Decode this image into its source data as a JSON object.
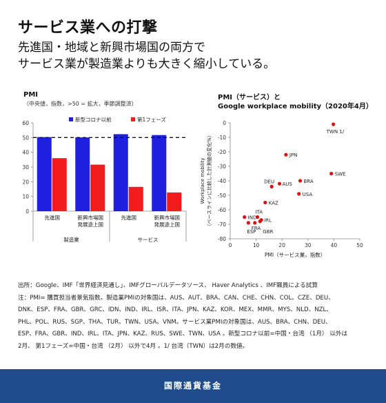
{
  "headline": "サービス業への打撃",
  "subtitle_line1": "先進国・地域と新興市場国の両方で",
  "subtitle_line2": "サービス業が製造業よりも大きく縮小している。",
  "left_chart": {
    "title": "PMI",
    "note": "（中央値，指数，>50 = 拡大，季節調整済）"
  },
  "right_chart": {
    "title_line1": "PMI（サービス）と",
    "title_line2": "Google workplace mobility（2020年4月）"
  },
  "chart_data": [
    {
      "type": "bar",
      "categories": [
        "先進国",
        "新興市場国発展途上国",
        "先進国",
        "新興市場国発展途上国"
      ],
      "category_lines": [
        [
          "先進国"
        ],
        [
          "新興市場国",
          "発展途上国"
        ],
        [
          "先進国"
        ],
        [
          "新興市場国",
          "発展途上国"
        ]
      ],
      "groups": [
        "製造業",
        "サービス"
      ],
      "series": [
        {
          "name": "新型コロナ以前",
          "color": "#1f1fe0",
          "values": [
            50.3,
            50.1,
            52.3,
            51.7
          ]
        },
        {
          "name": "第1フェーズ",
          "color": "#f21c1c",
          "values": [
            36.0,
            31.6,
            16.5,
            12.7
          ]
        }
      ],
      "reference_line": 50,
      "ylim": [
        0,
        60
      ],
      "yticks": [
        0,
        10,
        20,
        30,
        40,
        50,
        60
      ],
      "legend_position": "top"
    },
    {
      "type": "scatter",
      "xlabel": "PMI（サービス業，指数）",
      "ylabel_line1": "Workplace mobility",
      "ylabel_line2": "（ベースラインに比較した計測値の変化%）",
      "xlim": [
        0,
        50
      ],
      "ylim": [
        -80,
        0
      ],
      "xticks": [
        0,
        10,
        20,
        30,
        40,
        50
      ],
      "yticks": [
        0,
        -10,
        -20,
        -30,
        -40,
        -50,
        -60,
        -70,
        -80
      ],
      "color": "#e01010",
      "points": [
        {
          "label": "TWN 1/",
          "x": 39.8,
          "y": -1
        },
        {
          "label": "JPN",
          "x": 21.5,
          "y": -22
        },
        {
          "label": "SWE",
          "x": 39,
          "y": -35
        },
        {
          "label": "BRA",
          "x": 27,
          "y": -40
        },
        {
          "label": "DEU",
          "x": 16,
          "y": -44
        },
        {
          "label": "AUS",
          "x": 19,
          "y": -42
        },
        {
          "label": "USA",
          "x": 26.5,
          "y": -49
        },
        {
          "label": "KAZ",
          "x": 13.5,
          "y": -55
        },
        {
          "label": "IND",
          "x": 5.5,
          "y": -65
        },
        {
          "label": "ITA",
          "x": 10.5,
          "y": -65
        },
        {
          "label": "IRL",
          "x": 12,
          "y": -67
        },
        {
          "label": "ESP",
          "x": 7,
          "y": -69
        },
        {
          "label": "FRA",
          "x": 9.5,
          "y": -69
        },
        {
          "label": "GBR",
          "x": 11.5,
          "y": -68
        }
      ]
    }
  ],
  "notes": [
    "出所：Google、IMF「世界経済見通し」、IMFグローバルデータソース、 Haver Analytics 、IMF職員による試算",
    "注：PMI= 購買担当者景気指数。製造業PMIの対象国は、AUS、AUT、BRA、CAN、CHE、CHN、COL、CZE、DEU、",
    "DNK、ESP、FRA、GBR、GRC、IDN、IND、IRL、ISR、ITA、JPN、KAZ、KOR、MEX、MMR、MYS、NLD、NZL、",
    "PHL、POL、RUS、SGP、THA、TUR、TWN、USA、VNM。サービス業PMIの対象国は、AUS、BRA、CHN、DEU、",
    "ESP、FRA、GBR、IND、IRL、ITA、JPN、KAZ、RUS、SWE、TWN、USA 。新型コロナ以前=中国・台湾 （1月） 以外は",
    "2月、 第1フェーズ=中国・台湾 （2月） 以外で4月 。1/ 台湾（TWN）は2月の数値。"
  ],
  "footer": "国際通貨基金"
}
